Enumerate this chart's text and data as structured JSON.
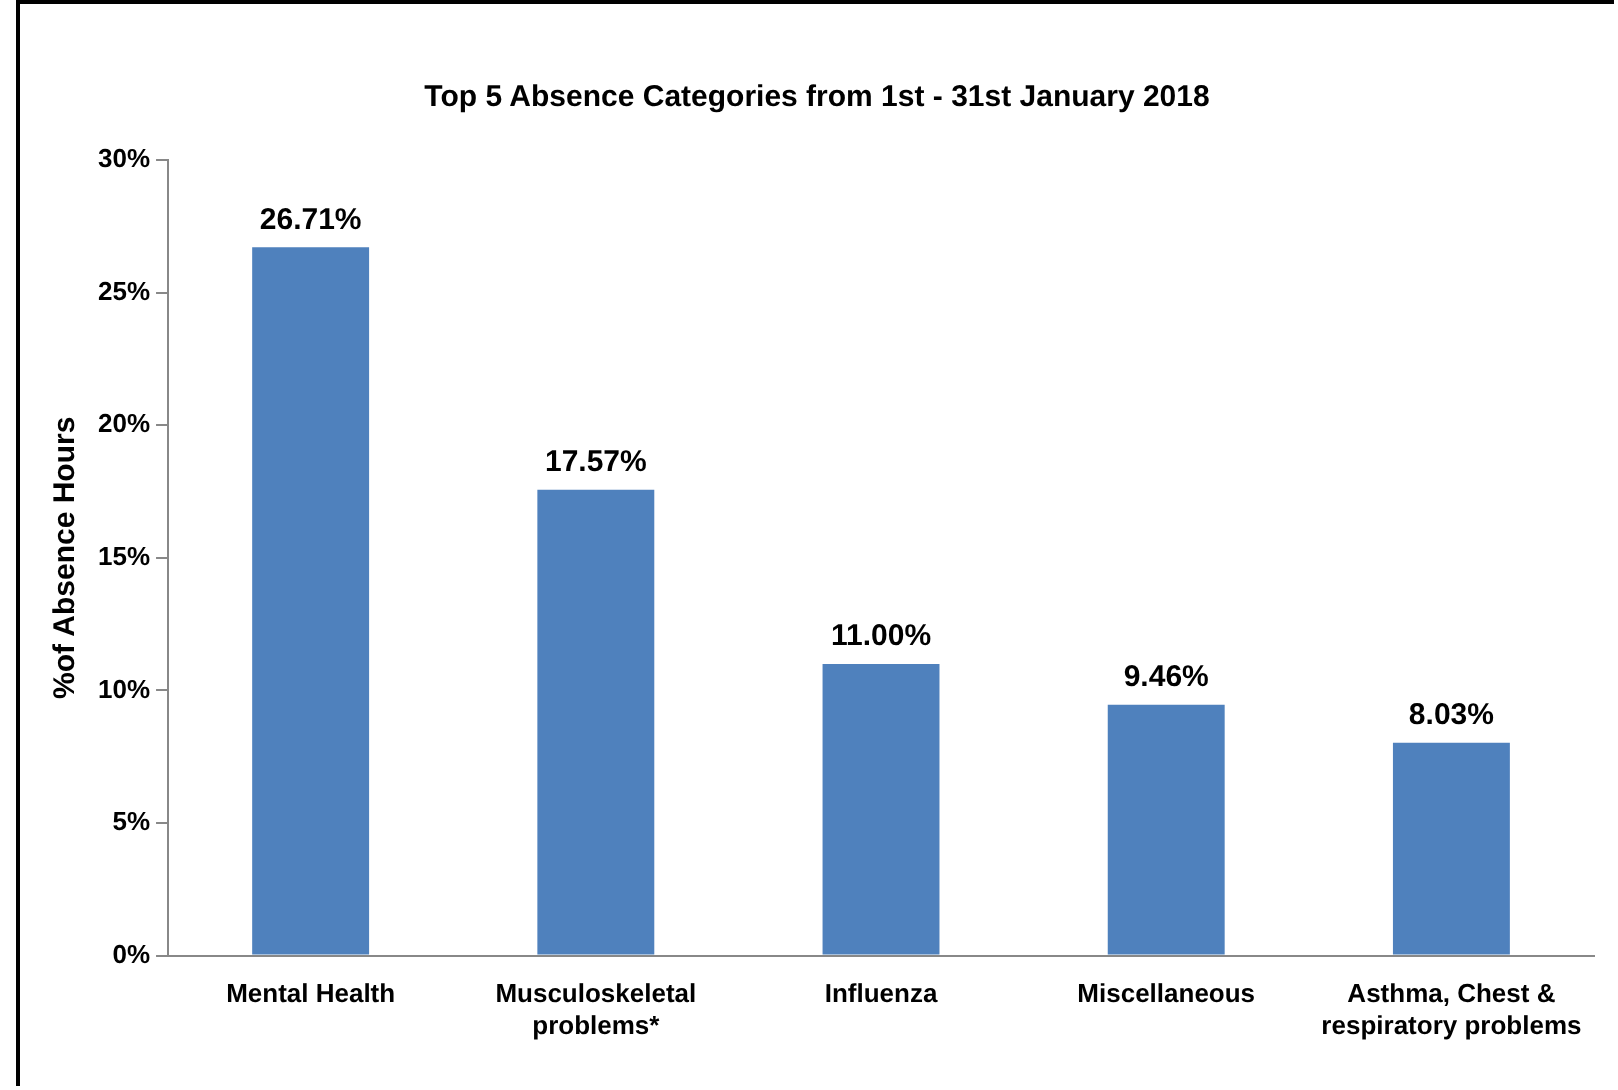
{
  "chart_data": {
    "type": "bar",
    "title": "Top 5 Absence Categories from 1st - 31st January 2018",
    "ylabel": "%of Absence Hours",
    "categories": [
      "Mental Health",
      "Musculoskeletal problems*",
      "Influenza",
      "Miscellaneous",
      "Asthma, Chest & respiratory problems"
    ],
    "values": [
      26.71,
      17.57,
      11.0,
      9.46,
      8.03
    ],
    "color": "#4f81bd",
    "value_labels": [
      "26.71%",
      "17.57%",
      "11.00%",
      "9.46%",
      "8.03%"
    ],
    "ylim": [
      0,
      30
    ],
    "yticks": [
      {
        "value": 0,
        "label": "0%"
      },
      {
        "value": 5,
        "label": "5%"
      },
      {
        "value": 10,
        "label": "10%"
      },
      {
        "value": 15,
        "label": "15%"
      },
      {
        "value": 20,
        "label": "20%"
      },
      {
        "value": 25,
        "label": "25%"
      },
      {
        "value": 30,
        "label": "30%"
      }
    ],
    "grid": false,
    "legend": false
  }
}
